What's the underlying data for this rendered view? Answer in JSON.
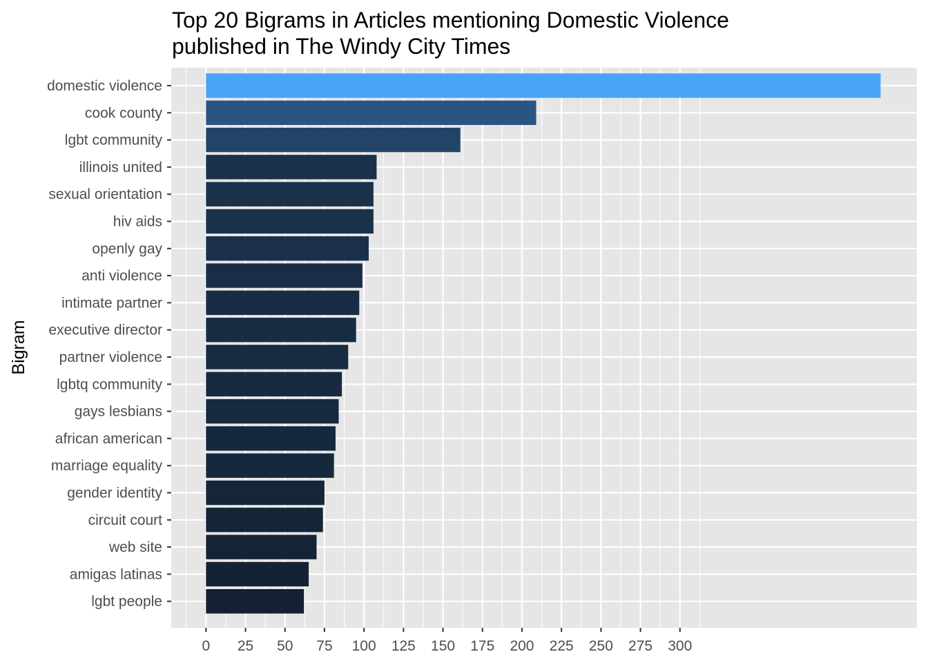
{
  "chart_data": {
    "type": "bar",
    "orientation": "horizontal",
    "title_lines": [
      "Top 20 Bigrams in Articles mentioning Domestic Violence",
      "published in The Windy City Times"
    ],
    "xlabel": "",
    "ylabel": "Bigram",
    "xlim": [
      -22,
      450
    ],
    "x_ticks": [
      0,
      25,
      50,
      75,
      100,
      125,
      150,
      175,
      200,
      225,
      250,
      275,
      300
    ],
    "x_tick_labels": [
      "0",
      "25",
      "50",
      "75",
      "100",
      "125",
      "150",
      "175",
      "200",
      "225",
      "250",
      "275",
      "300"
    ],
    "grid": true,
    "fill_low": "#132132",
    "fill_high": "#4aa3f7",
    "background_color": "#e6e6e6",
    "categories": [
      "domestic violence",
      "cook county",
      "lgbt community",
      "illinois united",
      "sexual orientation",
      "hiv aids",
      "openly gay",
      "anti violence",
      "intimate partner",
      "executive director",
      "partner violence",
      "lgbtq community",
      "gays lesbians",
      "african american",
      "marriage equality",
      "gender identity",
      "circuit court",
      "web site",
      "amigas latinas",
      "lgbt people"
    ],
    "values": [
      427,
      209,
      161,
      108,
      106,
      106,
      103,
      99,
      97,
      95,
      90,
      86,
      84,
      82,
      81,
      75,
      74,
      70,
      65,
      62
    ]
  }
}
